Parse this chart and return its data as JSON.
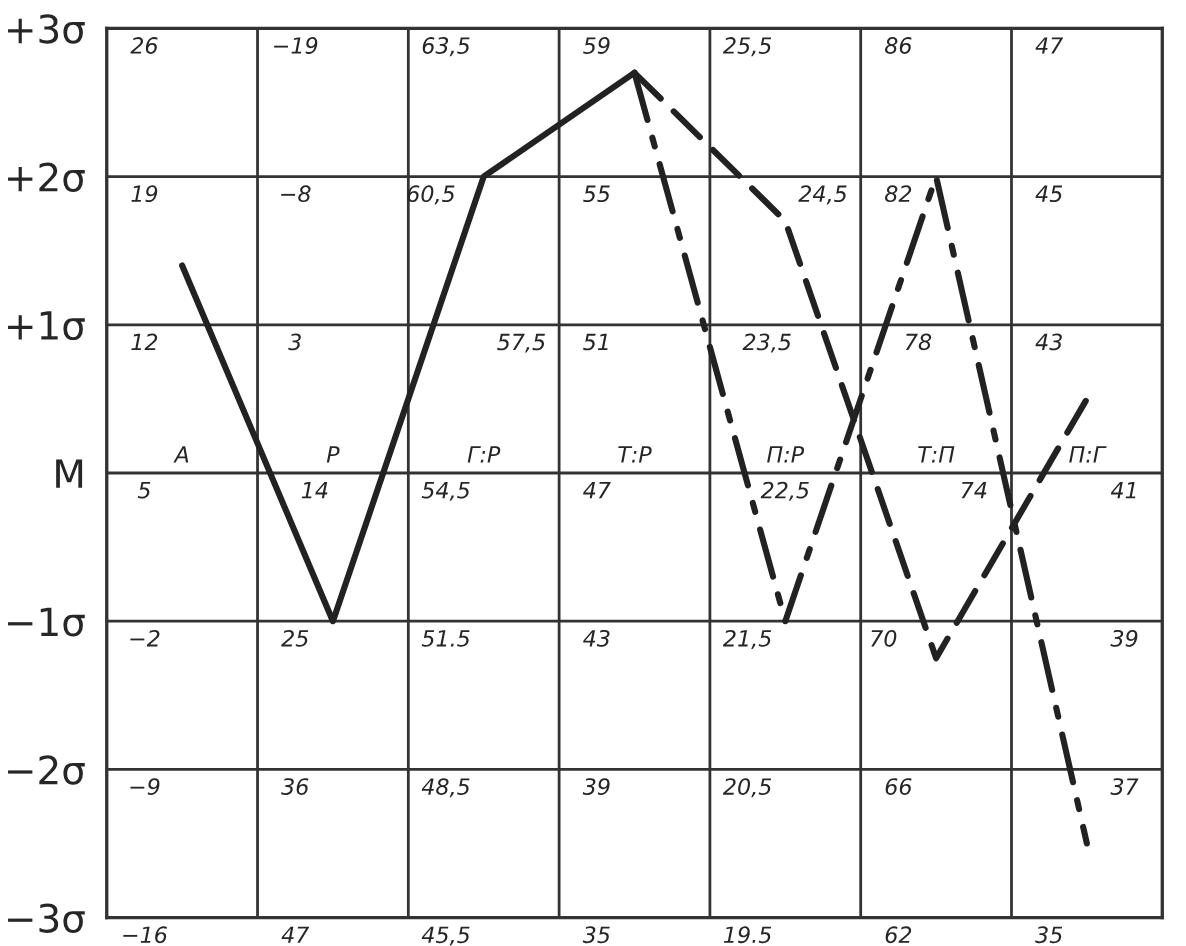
{
  "chart_data": {
    "type": "line",
    "categories": [
      "А",
      "Р",
      "Г:Р",
      "Т:Р",
      "П:Р",
      "Т:П",
      "П:Г"
    ],
    "series": [
      {
        "color": "#222222",
        "line_style": "solid",
        "values": [
          1.4,
          -1,
          2,
          2.7,
          null,
          null,
          null
        ]
      },
      {
        "color": "#222222",
        "line_style": "dashed",
        "values": [
          null,
          null,
          null,
          2.7,
          1.7,
          -1.25,
          0.5
        ]
      },
      {
        "color": "#222222",
        "line_style": "dashdot",
        "values": [
          null,
          null,
          null,
          2.7,
          -1,
          2,
          -2.5
        ]
      }
    ],
    "ylim": [
      -3,
      3
    ],
    "yticks": [
      {
        "value": 3,
        "label": "+3σ"
      },
      {
        "value": 2,
        "label": "+2σ"
      },
      {
        "value": 1,
        "label": "+1σ"
      },
      {
        "value": 0,
        "label": "M"
      },
      {
        "value": -1,
        "label": "−1σ"
      },
      {
        "value": -2,
        "label": "−2σ"
      },
      {
        "value": -3,
        "label": "−3σ"
      }
    ],
    "grid": true,
    "tick_labels": "y",
    "marker": "none",
    "annotations": [
      "26",
      "19",
      "12",
      "5",
      "−2",
      "−9",
      "−16",
      "−19",
      "−8",
      "3",
      "14",
      "25",
      "36",
      "47",
      "63,5",
      "60,5",
      "57,5",
      "54,5",
      "51.5",
      "48,5",
      "45,5",
      "59",
      "55",
      "51",
      "47",
      "43",
      "39",
      "35",
      "25,5",
      "24,5",
      "23,5",
      "22,5",
      "21,5",
      "20,5",
      "19.5",
      "86",
      "82",
      "78",
      "74",
      "70",
      "66",
      "62",
      "47",
      "45",
      "43",
      "41",
      "39",
      "37",
      "35"
    ]
  }
}
